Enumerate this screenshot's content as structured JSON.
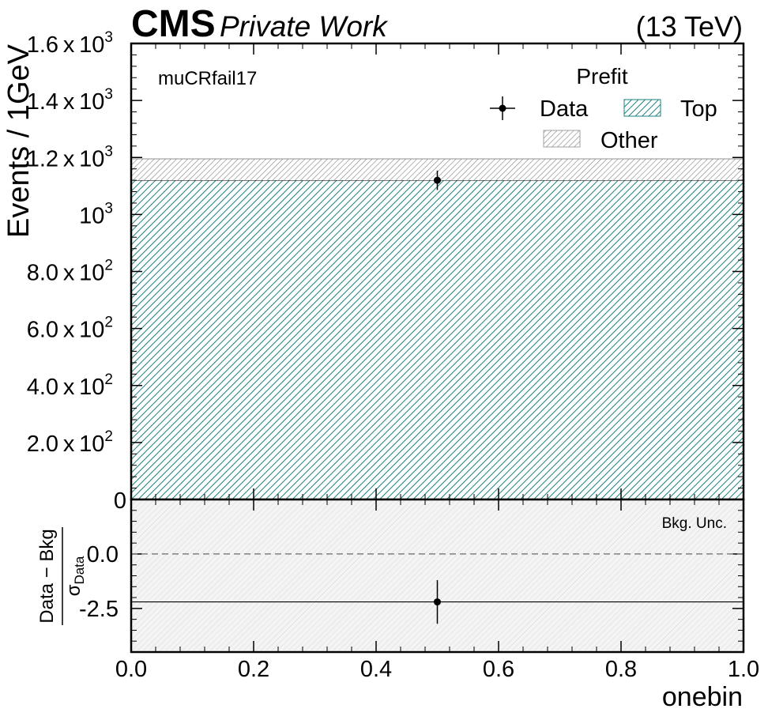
{
  "header": {
    "experiment": "CMS",
    "label": "Private Work",
    "energy": "(13 TeV)"
  },
  "chart_data": [
    {
      "type": "bar",
      "panel": "main",
      "region_label": "muCRfail17",
      "ylabel": "Events / 1GeV",
      "ylim": [
        0,
        1600
      ],
      "xlim": [
        0.0,
        1.0
      ],
      "y_ticks": [
        {
          "value": 0,
          "label": "0"
        },
        {
          "value": 200,
          "label": "2.0 x 10",
          "exp": "2"
        },
        {
          "value": 400,
          "label": "4.0 x 10",
          "exp": "2"
        },
        {
          "value": 600,
          "label": "6.0 x 10",
          "exp": "2"
        },
        {
          "value": 800,
          "label": "8.0 x 10",
          "exp": "2"
        },
        {
          "value": 1000,
          "label": "10",
          "exp": "3"
        },
        {
          "value": 1200,
          "label": "1.2 x 10",
          "exp": "3"
        },
        {
          "value": 1400,
          "label": "1.4 x 10",
          "exp": "3"
        },
        {
          "value": 1600,
          "label": "1.6 x 10",
          "exp": "3"
        }
      ],
      "stack": [
        {
          "name": "Top",
          "value": 1120,
          "color": "#1a8080"
        },
        {
          "name": "Other",
          "value": 75,
          "color": "#808080"
        }
      ],
      "data_points": [
        {
          "x": 0.5,
          "y": 1120,
          "yerr": 34,
          "xerr": 0
        }
      ],
      "legend": {
        "title": "Prefit",
        "data_label": "Data",
        "placement": "top-right"
      }
    },
    {
      "type": "scatter",
      "panel": "ratio",
      "ylabel_numerator": "Data − Bkg",
      "ylabel_denominator": "σ",
      "ylabel_denominator_sub": "Data",
      "ylim": [
        -4.5,
        2.5
      ],
      "y_ticks": [
        {
          "value": 0.0,
          "label": "0.0"
        },
        {
          "value": -2.5,
          "label": "-2.5"
        }
      ],
      "x_ticks": [
        {
          "value": 0.0,
          "label": "0.0"
        },
        {
          "value": 0.2,
          "label": "0.2"
        },
        {
          "value": 0.4,
          "label": "0.4"
        },
        {
          "value": 0.6,
          "label": "0.6"
        },
        {
          "value": 0.8,
          "label": "0.8"
        },
        {
          "value": 1.0,
          "label": "1.0"
        }
      ],
      "xlabel": "onebin",
      "reference_line": 0.0,
      "band_label": "Bkg. Unc.",
      "points": [
        {
          "x": 0.5,
          "y": -2.2,
          "yerr": 1.0
        }
      ]
    }
  ],
  "colors": {
    "top": "#1a8080",
    "other": "#808080",
    "band": "#c8c8c8",
    "axes": "#000000"
  }
}
